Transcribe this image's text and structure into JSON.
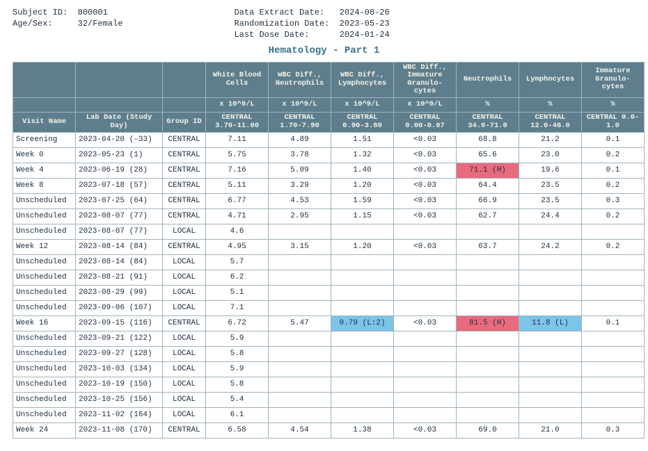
{
  "header": {
    "left": [
      [
        "Subject ID:",
        "800001"
      ],
      [
        "Age/Sex:",
        "32/Female"
      ]
    ],
    "right": [
      [
        "Data Extract Date:",
        "2024-08-26"
      ],
      [
        "Randomization Date:",
        "2023-05-23"
      ],
      [
        "Last Dose Date:",
        "2024-01-24"
      ]
    ]
  },
  "title": "Hematology - Part 1",
  "columns": [
    {
      "name": "White Blood Cells",
      "unit": "x 10^9/L",
      "range": "CENTRAL 3.70-11.00"
    },
    {
      "name": "WBC Diff., Neutrophils",
      "unit": "x 10^9/L",
      "range": "CENTRAL 1.70-7.90"
    },
    {
      "name": "WBC Diff., Lymphocytes",
      "unit": "x 10^9/L",
      "range": "CENTRAL 0.90-3.60"
    },
    {
      "name": "WBC Diff., Immature Granulo-cytes",
      "unit": "x 10^9/L",
      "range": "CENTRAL 0.00-0.07"
    },
    {
      "name": "Neutrophils",
      "unit": "%",
      "range": "CENTRAL 34.0-71.0"
    },
    {
      "name": "Lymphocytes",
      "unit": "%",
      "range": "CENTRAL 12.0-46.0"
    },
    {
      "name": "Immature Granulo-cytes",
      "unit": "%",
      "range": "CENTRAL 0.0-1.0"
    }
  ],
  "row_header_labels": {
    "visit": "Visit Name",
    "date": "Lab Date (Study Day)",
    "group": "Group ID"
  },
  "rows": [
    {
      "visit": "Screening",
      "date": "2023-04-20 (-33)",
      "group": "CENTRAL",
      "v": [
        "7.11",
        "4.89",
        "1.51",
        "<0.03",
        "68.8",
        "21.2",
        "0.1"
      ]
    },
    {
      "visit": "Week 0",
      "date": "2023-05-23 (1)",
      "group": "CENTRAL",
      "v": [
        "5.75",
        "3.78",
        "1.32",
        "<0.03",
        "65.6",
        "23.0",
        "0.2"
      ]
    },
    {
      "visit": "Week 4",
      "date": "2023-06-19 (28)",
      "group": "CENTRAL",
      "v": [
        "7.16",
        "5.09",
        "1.40",
        "<0.03",
        {
          "val": "71.1 (H)",
          "flag": "H"
        },
        "19.6",
        "0.1"
      ]
    },
    {
      "visit": "Week 8",
      "date": "2023-07-18 (57)",
      "group": "CENTRAL",
      "v": [
        "5.11",
        "3.29",
        "1.20",
        "<0.03",
        "64.4",
        "23.5",
        "0.2"
      ]
    },
    {
      "visit": "Unscheduled",
      "date": "2023-07-25 (64)",
      "group": "CENTRAL",
      "v": [
        "6.77",
        "4.53",
        "1.59",
        "<0.03",
        "66.9",
        "23.5",
        "0.3"
      ]
    },
    {
      "visit": "Unscheduled",
      "date": "2023-08-07 (77)",
      "group": "CENTRAL",
      "v": [
        "4.71",
        "2.95",
        "1.15",
        "<0.03",
        "62.7",
        "24.4",
        "0.2"
      ]
    },
    {
      "visit": "Unscheduled",
      "date": "2023-08-07 (77)",
      "group": "LOCAL",
      "v": [
        "4.6",
        "",
        "",
        "",
        "",
        "",
        ""
      ]
    },
    {
      "visit": "Week 12",
      "date": "2023-08-14 (84)",
      "group": "CENTRAL",
      "v": [
        "4.95",
        "3.15",
        "1.20",
        "<0.03",
        "63.7",
        "24.2",
        "0.2"
      ]
    },
    {
      "visit": "Unscheduled",
      "date": "2023-08-14 (84)",
      "group": "LOCAL",
      "v": [
        "5.7",
        "",
        "",
        "",
        "",
        "",
        ""
      ]
    },
    {
      "visit": "Unscheduled",
      "date": "2023-08-21 (91)",
      "group": "LOCAL",
      "v": [
        "6.2",
        "",
        "",
        "",
        "",
        "",
        ""
      ]
    },
    {
      "visit": "Unscheduled",
      "date": "2023-08-29 (99)",
      "group": "LOCAL",
      "v": [
        "5.1",
        "",
        "",
        "",
        "",
        "",
        ""
      ]
    },
    {
      "visit": "Unscheduled",
      "date": "2023-09-06 (107)",
      "group": "LOCAL",
      "v": [
        "7.1",
        "",
        "",
        "",
        "",
        "",
        ""
      ]
    },
    {
      "visit": "Week 16",
      "date": "2023-09-15 (116)",
      "group": "CENTRAL",
      "v": [
        "6.72",
        "5.47",
        {
          "val": "0.79 (L:2)",
          "flag": "L2"
        },
        "<0.03",
        {
          "val": "81.5 (H)",
          "flag": "H"
        },
        {
          "val": "11.8 (L)",
          "flag": "L"
        },
        "0.1"
      ]
    },
    {
      "visit": "Unscheduled",
      "date": "2023-09-21 (122)",
      "group": "LOCAL",
      "v": [
        "5.9",
        "",
        "",
        "",
        "",
        "",
        ""
      ]
    },
    {
      "visit": "Unscheduled",
      "date": "2023-09-27 (128)",
      "group": "LOCAL",
      "v": [
        "5.8",
        "",
        "",
        "",
        "",
        "",
        ""
      ]
    },
    {
      "visit": "Unscheduled",
      "date": "2023-10-03 (134)",
      "group": "LOCAL",
      "v": [
        "5.9",
        "",
        "",
        "",
        "",
        "",
        ""
      ]
    },
    {
      "visit": "Unscheduled",
      "date": "2023-10-19 (150)",
      "group": "LOCAL",
      "v": [
        "5.8",
        "",
        "",
        "",
        "",
        "",
        ""
      ]
    },
    {
      "visit": "Unscheduled",
      "date": "2023-10-25 (156)",
      "group": "LOCAL",
      "v": [
        "5.4",
        "",
        "",
        "",
        "",
        "",
        ""
      ]
    },
    {
      "visit": "Unscheduled",
      "date": "2023-11-02 (164)",
      "group": "LOCAL",
      "v": [
        "6.1",
        "",
        "",
        "",
        "",
        "",
        ""
      ]
    },
    {
      "visit": "Week 24",
      "date": "2023-11-08 (170)",
      "group": "CENTRAL",
      "v": [
        "6.58",
        "4.54",
        "1.38",
        "<0.03",
        "69.0",
        "21.0",
        "0.3"
      ]
    }
  ],
  "style": {
    "header_bg": "#5e7e8d",
    "header_fg": "#f5f3e6",
    "border": "#9fb3bb",
    "flag_high_bg": "#e86b7d",
    "flag_low_bg": "#7cc4e8",
    "title_color": "#3a6f8a",
    "font_family": "Courier New"
  }
}
